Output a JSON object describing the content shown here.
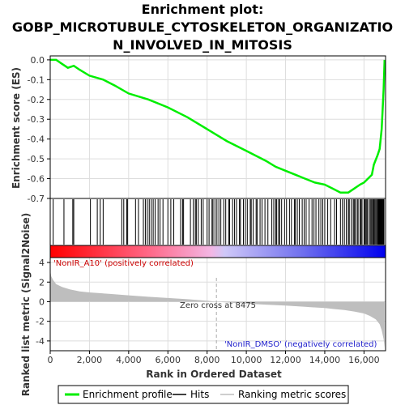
{
  "chart_data": {
    "type": "line",
    "title_lines": [
      "Enrichment plot:",
      "GOBP_MICROTUBULE_CYTOSKELETON_ORGANIZATIO",
      "N_INVOLVED_IN_MITOSIS"
    ],
    "colors": {
      "enrichment": "#00ee00",
      "hits": "#000000",
      "metric_fill": "#bebebe",
      "positive_label": "#cc0000",
      "negative_label": "#2222cc",
      "grid": "#dddddd",
      "zero_cross_line": "#aaaaaa"
    },
    "es_panel": {
      "ylabel": "Enrichment score (ES)",
      "ylim": [
        -0.7,
        0.02
      ],
      "yticks": [
        0.0,
        -0.1,
        -0.2,
        -0.3,
        -0.4,
        -0.5,
        -0.6,
        -0.7
      ],
      "ytick_labels": [
        "0.0",
        "-0.1",
        "-0.2",
        "-0.3",
        "-0.4",
        "-0.5",
        "-0.6",
        "-0.7"
      ],
      "series": [
        {
          "name": "Enrichment profile",
          "x": [
            0,
            300,
            600,
            900,
            1200,
            1500,
            2000,
            2700,
            3300,
            4000,
            5000,
            6000,
            7000,
            8000,
            9000,
            10000,
            11000,
            11500,
            12000,
            12500,
            13000,
            13500,
            14000,
            14400,
            14800,
            15200,
            15500,
            15800,
            16000,
            16200,
            16400,
            16500,
            16700,
            16800,
            16900,
            17000,
            17050
          ],
          "y": [
            0.0,
            0.0,
            -0.02,
            -0.04,
            -0.03,
            -0.05,
            -0.08,
            -0.1,
            -0.13,
            -0.17,
            -0.2,
            -0.24,
            -0.29,
            -0.35,
            -0.41,
            -0.46,
            -0.51,
            -0.54,
            -0.56,
            -0.58,
            -0.6,
            -0.62,
            -0.63,
            -0.65,
            -0.67,
            -0.67,
            -0.65,
            -0.63,
            -0.62,
            -0.6,
            -0.58,
            -0.53,
            -0.48,
            -0.45,
            -0.35,
            -0.15,
            0.0
          ]
        }
      ]
    },
    "hits": {
      "name": "Hits",
      "positions": [
        150,
        700,
        1150,
        1200,
        2050,
        2400,
        2550,
        2700,
        3650,
        3750,
        3900,
        3950,
        4350,
        4500,
        4750,
        4850,
        4950,
        5050,
        5150,
        5250,
        5350,
        5500,
        5600,
        5750,
        6000,
        6150,
        6300,
        6650,
        6750,
        6800,
        7150,
        7300,
        7400,
        7450,
        7550,
        7700,
        7800,
        8000,
        8100,
        8250,
        8300,
        8400,
        8500,
        8600,
        8700,
        8850,
        8950,
        9100,
        9150,
        9300,
        9400,
        9500,
        9650,
        9700,
        9850,
        9950,
        10050,
        10200,
        10250,
        10350,
        10500,
        10550,
        10700,
        10800,
        10950,
        11100,
        11300,
        11400,
        11500,
        11550,
        11650,
        11700,
        11800,
        11950,
        12050,
        12200,
        12300,
        12450,
        12500,
        12600,
        12700,
        12850,
        12950,
        13050,
        13200,
        13350,
        13450,
        13550,
        13700,
        13800,
        13900,
        14000,
        14150,
        14300,
        14500,
        14600,
        14800,
        14900,
        15000,
        15100,
        15200,
        15250,
        15350,
        15450,
        15500,
        15550,
        15650,
        15700,
        15800,
        15850,
        15900,
        16000,
        16050,
        16100,
        16150,
        16200,
        16300,
        16350,
        16400,
        16450,
        16500,
        16550,
        16600,
        16650,
        16700,
        16720,
        16750,
        16780,
        16800,
        16830,
        16850,
        16880,
        16900,
        16920,
        16950,
        16980,
        17000,
        17020
      ]
    },
    "metric_panel": {
      "ylabel": "Ranked list metric (Signal2Noise)",
      "ylim": [
        -5,
        4.5
      ],
      "yticks": [
        4,
        2,
        0,
        -2,
        -4
      ],
      "ytick_labels": [
        "4",
        "2",
        "0",
        "-2",
        "-4"
      ],
      "x": [
        0,
        50,
        150,
        300,
        600,
        1000,
        1500,
        2000,
        3000,
        4000,
        5000,
        6000,
        7000,
        8000,
        8475,
        9000,
        10000,
        11000,
        12000,
        13000,
        14000,
        14500,
        15000,
        15500,
        16000,
        16300,
        16600,
        16800,
        16900,
        17000,
        17050
      ],
      "values": [
        3.2,
        2.6,
        2.2,
        1.8,
        1.5,
        1.25,
        1.05,
        0.95,
        0.8,
        0.65,
        0.5,
        0.38,
        0.25,
        0.1,
        0.0,
        -0.08,
        -0.2,
        -0.3,
        -0.4,
        -0.52,
        -0.65,
        -0.75,
        -0.85,
        -1.0,
        -1.2,
        -1.45,
        -1.8,
        -2.3,
        -2.9,
        -3.8,
        -4.7
      ],
      "positive_label": "'NonIR_A10' (positively correlated)",
      "negative_label": "'NonIR_DMSO' (negatively correlated)",
      "zero_cross_text": "Zero cross at 8475",
      "zero_cross": 8475
    },
    "x_axis": {
      "xlabel": "Rank in Ordered Dataset",
      "xlim": [
        0,
        17100
      ],
      "xticks": [
        0,
        2000,
        4000,
        6000,
        8000,
        10000,
        12000,
        14000,
        16000
      ],
      "xtick_labels": [
        "0",
        "2,000",
        "4,000",
        "6,000",
        "8,000",
        "10,000",
        "12,000",
        "14,000",
        "16,000"
      ]
    },
    "legend": {
      "placement": "bottom",
      "items": [
        {
          "label": "Enrichment profile",
          "style": "enrichment"
        },
        {
          "label": "Hits",
          "style": "hits"
        },
        {
          "label": "Ranking metric scores",
          "style": "metric"
        }
      ]
    }
  }
}
